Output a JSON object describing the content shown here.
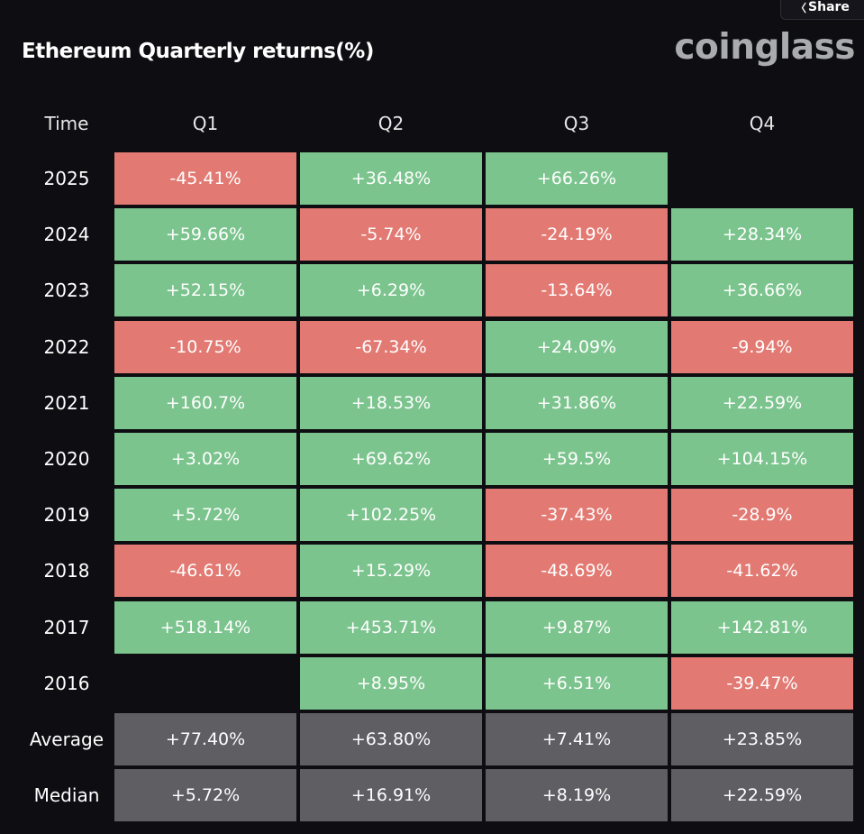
{
  "header": {
    "title": "Ethereum Quarterly returns(%)",
    "brand": "coinglass",
    "share_label": "Share",
    "share_icon": "share-icon"
  },
  "colors": {
    "positive": "#7cc48e",
    "negative": "#e27a73",
    "summary": "#5e5e63",
    "background": "#0e0e12"
  },
  "chart_data": {
    "type": "table",
    "title": "Ethereum Quarterly returns(%)",
    "columns": [
      "Time",
      "Q1",
      "Q2",
      "Q3",
      "Q4"
    ],
    "rows": [
      {
        "label": "2025",
        "values": [
          "-45.41%",
          "+36.48%",
          "+66.26%",
          ""
        ]
      },
      {
        "label": "2024",
        "values": [
          "+59.66%",
          "-5.74%",
          "-24.19%",
          "+28.34%"
        ]
      },
      {
        "label": "2023",
        "values": [
          "+52.15%",
          "+6.29%",
          "-13.64%",
          "+36.66%"
        ]
      },
      {
        "label": "2022",
        "values": [
          "-10.75%",
          "-67.34%",
          "+24.09%",
          "-9.94%"
        ]
      },
      {
        "label": "2021",
        "values": [
          "+160.7%",
          "+18.53%",
          "+31.86%",
          "+22.59%"
        ]
      },
      {
        "label": "2020",
        "values": [
          "+3.02%",
          "+69.62%",
          "+59.5%",
          "+104.15%"
        ]
      },
      {
        "label": "2019",
        "values": [
          "+5.72%",
          "+102.25%",
          "-37.43%",
          "-28.9%"
        ]
      },
      {
        "label": "2018",
        "values": [
          "-46.61%",
          "+15.29%",
          "-48.69%",
          "-41.62%"
        ]
      },
      {
        "label": "2017",
        "values": [
          "+518.14%",
          "+453.71%",
          "+9.87%",
          "+142.81%"
        ]
      },
      {
        "label": "2016",
        "values": [
          "",
          "+8.95%",
          "+6.51%",
          "-39.47%"
        ]
      }
    ],
    "summary_rows": [
      {
        "label": "Average",
        "values": [
          "+77.40%",
          "+63.80%",
          "+7.41%",
          "+23.85%"
        ]
      },
      {
        "label": "Median",
        "values": [
          "+5.72%",
          "+16.91%",
          "+8.19%",
          "+22.59%"
        ]
      }
    ]
  }
}
